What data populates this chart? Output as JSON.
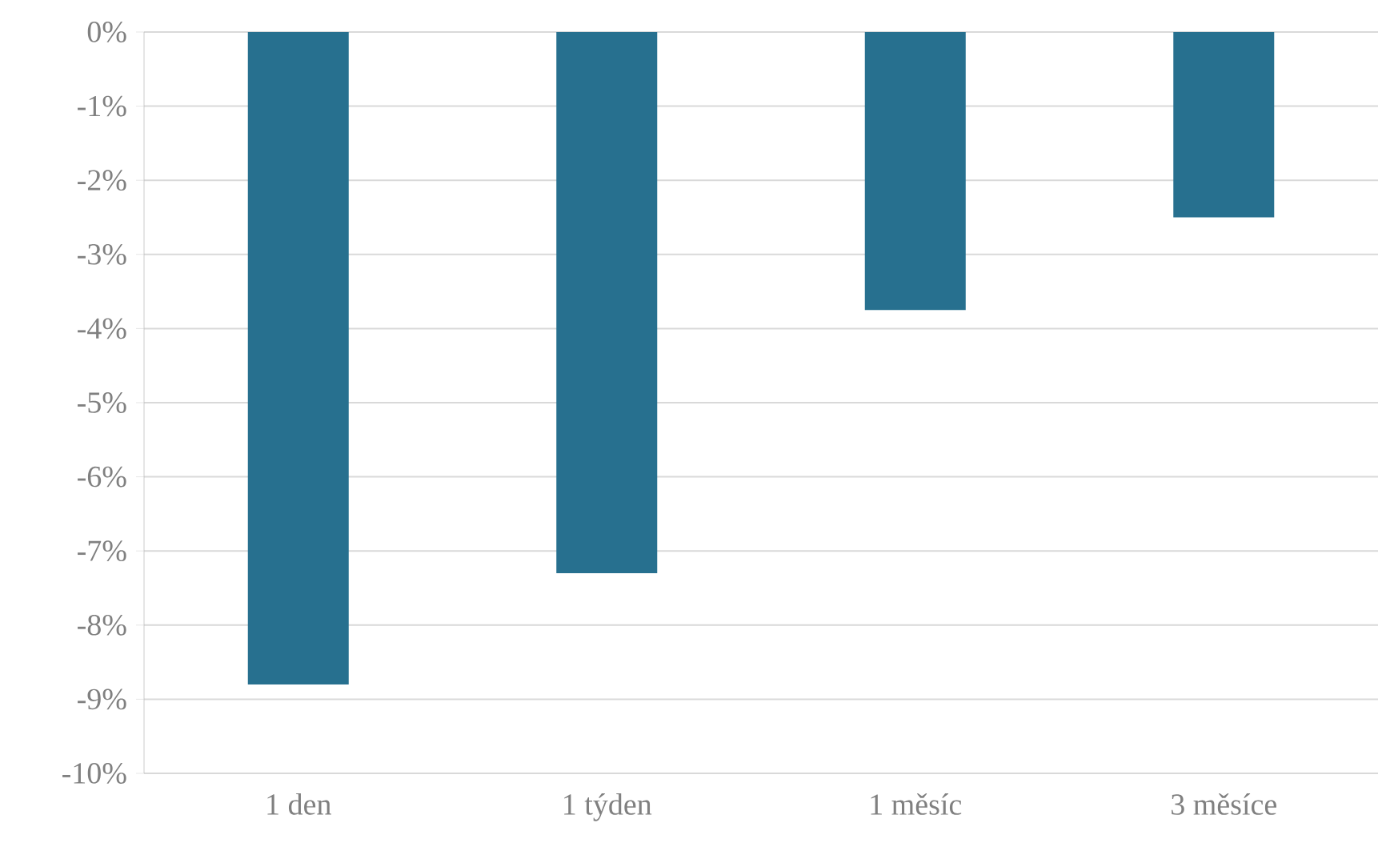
{
  "chart_data": {
    "type": "bar",
    "categories": [
      "1 den",
      "1 týden",
      "1 měsíc",
      "3 měsíce"
    ],
    "values": [
      -8.8,
      -7.3,
      -3.75,
      -2.5
    ],
    "color": "#27708f",
    "ylim": [
      -10,
      0
    ],
    "yticks": [
      {
        "value": 0,
        "label": "0%"
      },
      {
        "value": -1,
        "label": "-1%"
      },
      {
        "value": -2,
        "label": "-2%"
      },
      {
        "value": -3,
        "label": "-3%"
      },
      {
        "value": -4,
        "label": "-4%"
      },
      {
        "value": -5,
        "label": "-5%"
      },
      {
        "value": -6,
        "label": "-6%"
      },
      {
        "value": -7,
        "label": "-7%"
      },
      {
        "value": -8,
        "label": "-8%"
      },
      {
        "value": -9,
        "label": "-9%"
      },
      {
        "value": -10,
        "label": "-10%"
      }
    ],
    "grid": "y"
  }
}
